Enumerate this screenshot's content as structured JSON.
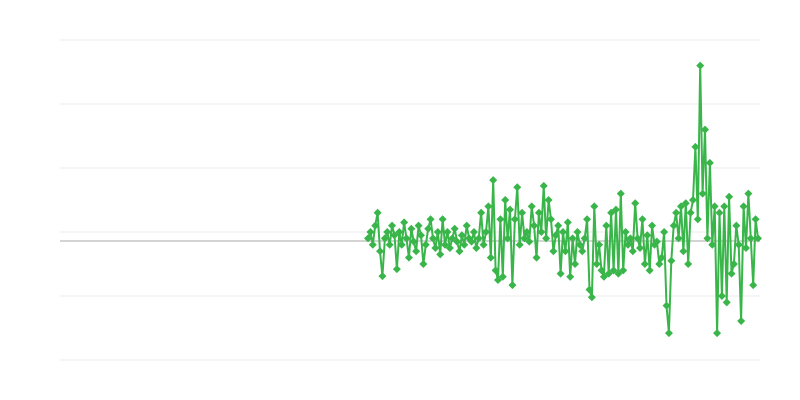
{
  "chart_data": {
    "type": "line",
    "title": "",
    "xlabel": "",
    "ylabel": "",
    "ylim": [
      0,
      5
    ],
    "grid": true,
    "gridlines_y": [
      0,
      1,
      2,
      3,
      4,
      5
    ],
    "reference_line_y": 1.86,
    "marker": "diamond",
    "legend": "none",
    "colors": {
      "series": "#39b54a",
      "grid": "#ebebeb",
      "reference": "#aaaaaa"
    },
    "x_start_fraction": 0.44,
    "series": [
      {
        "values": [
          1.9,
          2.0,
          1.8,
          2.1,
          2.3,
          1.7,
          1.31,
          1.9,
          2.0,
          1.8,
          2.1,
          1.95,
          1.42,
          2.0,
          1.8,
          2.15,
          1.9,
          1.6,
          2.05,
          1.85,
          1.7,
          2.1,
          1.95,
          1.5,
          1.8,
          2.05,
          2.2,
          1.9,
          1.75,
          2.0,
          1.65,
          2.2,
          1.8,
          2.0,
          1.75,
          1.9,
          2.05,
          1.85,
          1.7,
          1.95,
          1.8,
          2.1,
          1.9,
          1.85,
          2.0,
          1.75,
          1.9,
          2.3,
          1.8,
          2.0,
          2.4,
          1.6,
          2.81,
          1.4,
          1.25,
          2.2,
          1.3,
          2.5,
          1.9,
          2.35,
          1.17,
          2.2,
          2.7,
          1.8,
          2.3,
          1.9,
          2.0,
          1.85,
          2.4,
          2.1,
          1.6,
          2.3,
          2.0,
          2.72,
          1.9,
          2.5,
          2.2,
          1.7,
          1.95,
          2.1,
          1.35,
          2.0,
          1.7,
          2.15,
          1.3,
          1.9,
          1.5,
          2.0,
          1.8,
          1.7,
          1.9,
          2.2,
          1.1,
          0.98,
          2.4,
          1.5,
          1.8,
          1.4,
          1.3,
          2.1,
          1.35,
          2.3,
          1.4,
          2.35,
          1.35,
          2.6,
          1.4,
          2.0,
          1.8,
          1.9,
          1.7,
          2.45,
          1.9,
          1.75,
          2.2,
          1.5,
          1.95,
          1.4,
          2.1,
          1.8,
          1.85,
          1.5,
          1.6,
          2.0,
          0.85,
          0.42,
          1.55,
          2.1,
          2.3,
          1.9,
          2.4,
          1.7,
          2.45,
          1.5,
          2.3,
          2.5,
          3.33,
          2.2,
          4.6,
          2.6,
          3.6,
          1.9,
          3.08,
          1.8,
          2.4,
          0.42,
          2.3,
          1.0,
          2.4,
          0.9,
          2.55,
          1.35,
          1.5,
          2.1,
          1.8,
          0.61,
          2.4,
          1.75,
          2.6,
          1.9,
          1.17,
          2.2,
          1.9
        ]
      }
    ]
  }
}
